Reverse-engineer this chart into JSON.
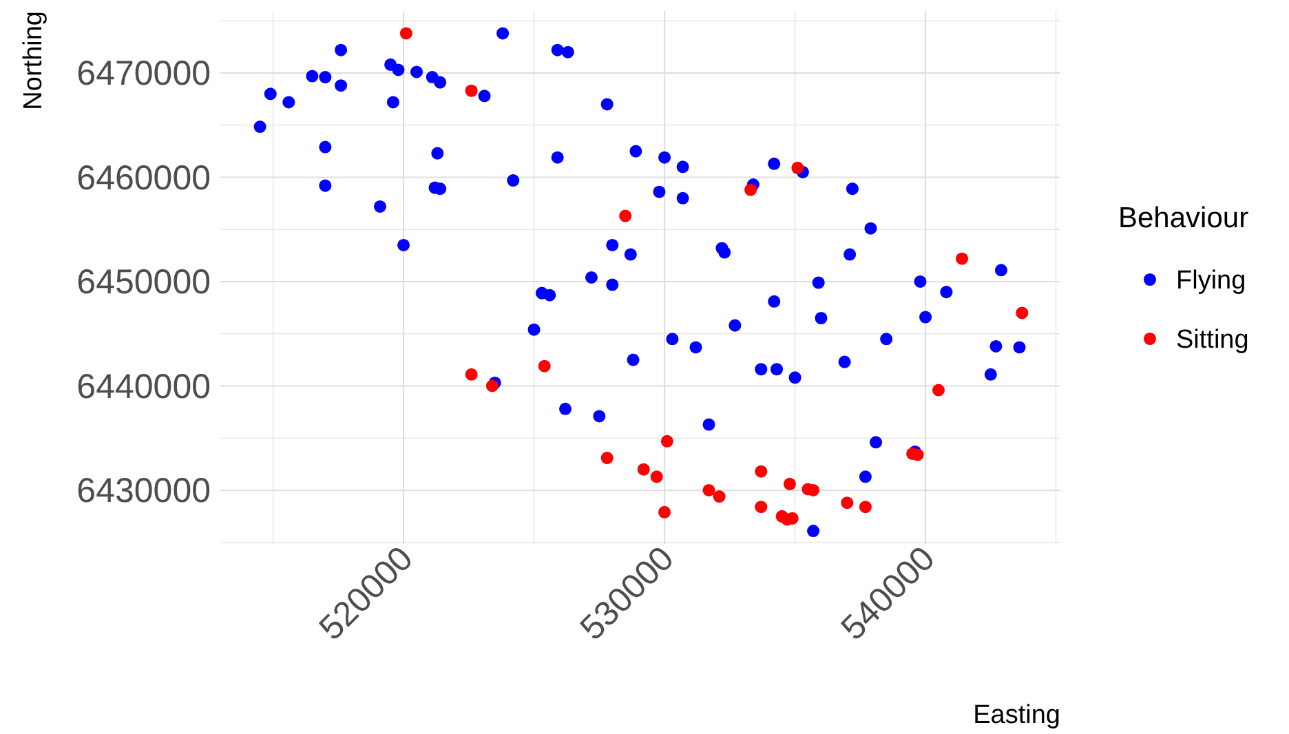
{
  "chart_data": {
    "type": "scatter",
    "xlabel": "Easting",
    "ylabel": "Northing",
    "legend_title": "Behaviour",
    "legend": "right",
    "grid": true,
    "marker": "circle",
    "xlim": [
      512980,
      545170
    ],
    "ylim": [
      6424850,
      6475940
    ],
    "xticks": [
      {
        "value": 515000,
        "label": null
      },
      520000,
      {
        "value": 525000,
        "label": null
      },
      530000,
      {
        "value": 535000,
        "label": null
      },
      540000,
      {
        "value": 545000,
        "label": null
      }
    ],
    "yticks": [
      {
        "value": 6425000,
        "label": null
      },
      6430000,
      {
        "value": 6435000,
        "label": null
      },
      6440000,
      {
        "value": 6445000,
        "label": null
      },
      6450000,
      {
        "value": 6455000,
        "label": null
      },
      6460000,
      {
        "value": 6465000,
        "label": null
      },
      6470000,
      {
        "value": 6475000,
        "label": null
      }
    ],
    "series": [
      {
        "name": "Flying",
        "color": "#0000ff",
        "x": [
          514500,
          514900,
          515600,
          516500,
          517000,
          517600,
          517600,
          517000,
          517000,
          519100,
          519500,
          519600,
          519800,
          520000,
          520500,
          521100,
          521300,
          521200,
          521400,
          521400,
          523100,
          523800,
          524200,
          523500,
          525000,
          525300,
          525600,
          525900,
          526300,
          525900,
          526200,
          527200,
          527500,
          527800,
          528000,
          528000,
          528700,
          528800,
          528900,
          529800,
          530000,
          530300,
          530700,
          530700,
          531200,
          531700,
          532200,
          532300,
          532700,
          533400,
          533700,
          534200,
          534200,
          534300,
          535000,
          535300,
          535900,
          536000,
          536900,
          537200,
          537100,
          537700,
          537900,
          538100,
          538500,
          539600,
          539800,
          540000,
          540800,
          542500,
          542700,
          542900,
          543600,
          535700
        ],
        "values": [
          6464850,
          6468000,
          6467200,
          6469700,
          6469600,
          6468800,
          6472200,
          6462900,
          6459200,
          6457200,
          6470800,
          6467200,
          6470300,
          6453500,
          6470100,
          6469600,
          6462300,
          6459000,
          6458900,
          6469100,
          6467800,
          6473800,
          6459700,
          6440300,
          6445400,
          6448900,
          6448700,
          6472200,
          6472000,
          6461900,
          6437800,
          6450400,
          6437100,
          6467000,
          6453500,
          6449700,
          6452600,
          6442500,
          6462500,
          6458600,
          6461900,
          6444500,
          6461000,
          6458000,
          6443700,
          6436300,
          6453200,
          6452800,
          6445800,
          6459300,
          6441600,
          6461300,
          6448100,
          6441600,
          6440800,
          6460500,
          6449900,
          6446500,
          6442300,
          6458900,
          6452600,
          6431300,
          6455100,
          6434600,
          6444500,
          6433700,
          6450000,
          6446600,
          6449000,
          6441100,
          6443800,
          6451100,
          6443700,
          6426100
        ]
      },
      {
        "name": "Sitting",
        "color": "#ff0000",
        "x": [
          520100,
          522600,
          528500,
          522600,
          523400,
          525400,
          527800,
          529200,
          529700,
          530100,
          530000,
          531700,
          532100,
          533300,
          533700,
          533700,
          534500,
          534700,
          534800,
          534900,
          535500,
          535700,
          537000,
          537700,
          535100,
          539500,
          539700,
          540500,
          541400,
          543700
        ],
        "values": [
          6473800,
          6468300,
          6456300,
          6441100,
          6440000,
          6441900,
          6433100,
          6432000,
          6431300,
          6434700,
          6427900,
          6430000,
          6429400,
          6458800,
          6431800,
          6428400,
          6427500,
          6427200,
          6430600,
          6427300,
          6430100,
          6430000,
          6428800,
          6428400,
          6460900,
          6433500,
          6433400,
          6439600,
          6452200,
          6447000
        ]
      }
    ]
  }
}
